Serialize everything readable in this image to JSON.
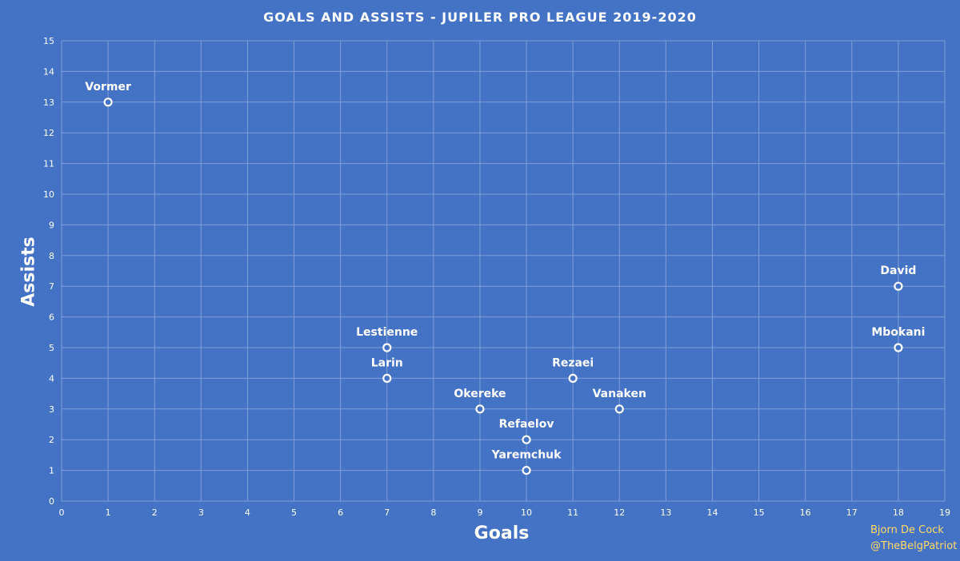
{
  "chart_data": {
    "type": "scatter",
    "title": "GOALS AND ASSISTS - JUPILER PRO LEAGUE 2019-2020",
    "xlabel": "Goals",
    "ylabel": "Assists",
    "xlim": [
      0,
      19
    ],
    "ylim": [
      0,
      15
    ],
    "grid": true,
    "points": [
      {
        "label": "Vormer",
        "x": 1,
        "y": 13
      },
      {
        "label": "Lestienne",
        "x": 7,
        "y": 5
      },
      {
        "label": "Larin",
        "x": 7,
        "y": 4
      },
      {
        "label": "Okereke",
        "x": 9,
        "y": 3
      },
      {
        "label": "Refaelov",
        "x": 10,
        "y": 2
      },
      {
        "label": "Yaremchuk",
        "x": 10,
        "y": 1
      },
      {
        "label": "Rezaei",
        "x": 11,
        "y": 4
      },
      {
        "label": "Vanaken",
        "x": 12,
        "y": 3
      },
      {
        "label": "David",
        "x": 18,
        "y": 7
      },
      {
        "label": "Mbokani",
        "x": 18,
        "y": 5
      }
    ]
  },
  "credit": {
    "author": "Bjorn De Cock",
    "handle": "@TheBelgPatriot"
  },
  "colors": {
    "background": "#4472c4",
    "grid": "#7f9fd8",
    "marker": "#ffffff",
    "credit": "#ffd966"
  }
}
